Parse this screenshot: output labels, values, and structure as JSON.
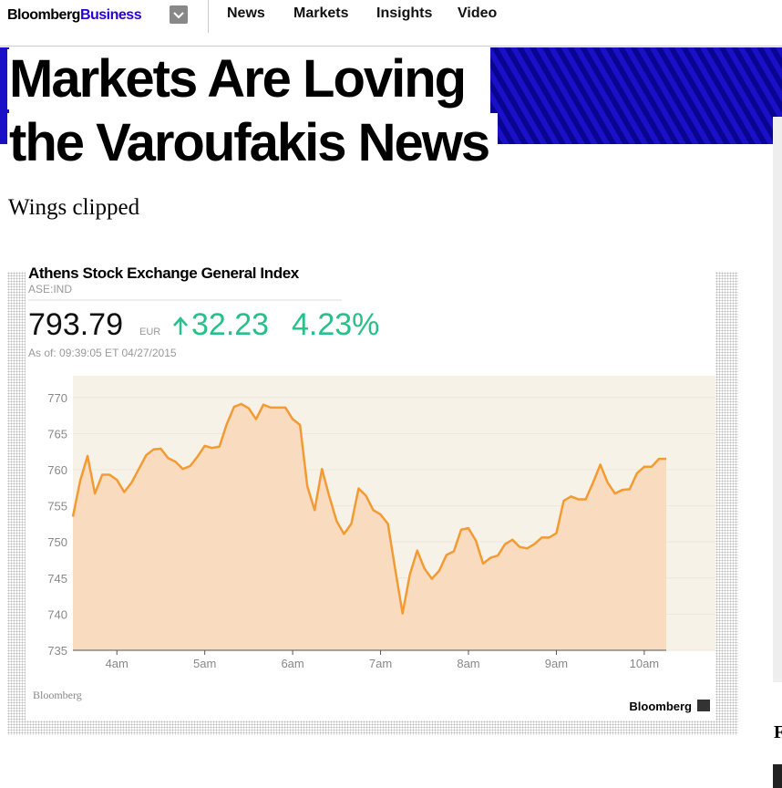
{
  "header": {
    "brand": "Bloomberg",
    "brand_accent": "Business",
    "nav": [
      "News",
      "Markets",
      "Insights",
      "Video"
    ]
  },
  "article": {
    "headline": [
      "Markets Are Loving",
      "the Varoufakis News"
    ],
    "subhead": "Wings clipped",
    "sidebar_letter": "F"
  },
  "quote": {
    "price": "793.79",
    "currency": "EUR",
    "change": "32.23",
    "change_percent": "4.23%",
    "as_of": "As of: 09:39:05 ET 04/27/2015",
    "source": "Bloomberg",
    "logo": "Bloomberg"
  },
  "chart_data": {
    "type": "line",
    "title": "Athens Stock Exchange General Index",
    "subtitle": "ASE:IND",
    "x": [
      210,
      215,
      220,
      225,
      230,
      235,
      240,
      245,
      250,
      255,
      260,
      265,
      270,
      275,
      280,
      285,
      290,
      295,
      300,
      305,
      310,
      315,
      320,
      325,
      330,
      335,
      340,
      345,
      350,
      355,
      360,
      365,
      370,
      375,
      380,
      385,
      390,
      395,
      400,
      405,
      410,
      415,
      420,
      425,
      430,
      435,
      440,
      445,
      450,
      455,
      460,
      465,
      470,
      475,
      480,
      485,
      490,
      495,
      500,
      505,
      510,
      515,
      520,
      525,
      530,
      535,
      540,
      545,
      550,
      555,
      560,
      565,
      570,
      575,
      580,
      585,
      590,
      595,
      600,
      605,
      610,
      615
    ],
    "values": [
      753.5,
      758.5,
      761.9,
      756.7,
      759.3,
      759.3,
      758.6,
      756.9,
      758.2,
      760.1,
      762.0,
      762.8,
      762.9,
      761.6,
      761.1,
      760.1,
      760.5,
      761.8,
      763.3,
      763.0,
      763.2,
      766.3,
      768.7,
      769.1,
      768.5,
      767.0,
      769.0,
      768.6,
      768.6,
      768.6,
      767.0,
      766.2,
      757.7,
      754.4,
      760.1,
      756.3,
      752.9,
      751.1,
      752.5,
      757.4,
      756.4,
      754.4,
      753.8,
      752.5,
      746.2,
      740.1,
      745.5,
      748.8,
      746.3,
      744.9,
      746.0,
      748.2,
      748.7,
      751.7,
      751.9,
      750.2,
      747.0,
      747.8,
      748.1,
      749.7,
      750.3,
      749.3,
      749.1,
      749.7,
      750.6,
      750.6,
      751.2,
      755.7,
      756.3,
      755.9,
      755.9,
      758.2,
      760.7,
      758.2,
      756.7,
      757.2,
      757.3,
      759.5,
      760.4,
      760.4,
      761.5,
      761.5
    ],
    "color": "#f39a33",
    "fill": "#f9dcbf",
    "xlim": [
      210,
      615
    ],
    "xticks": [
      {
        "value": 240,
        "label": "4am"
      },
      {
        "value": 300,
        "label": "5am"
      },
      {
        "value": 360,
        "label": "6am"
      },
      {
        "value": 420,
        "label": "7am"
      },
      {
        "value": 480,
        "label": "8am"
      },
      {
        "value": 540,
        "label": "9am"
      },
      {
        "value": 600,
        "label": "10am"
      }
    ],
    "ylim": [
      735,
      773
    ],
    "yticks": [
      735,
      740,
      745,
      750,
      755,
      760,
      765,
      770
    ],
    "grid": true
  }
}
